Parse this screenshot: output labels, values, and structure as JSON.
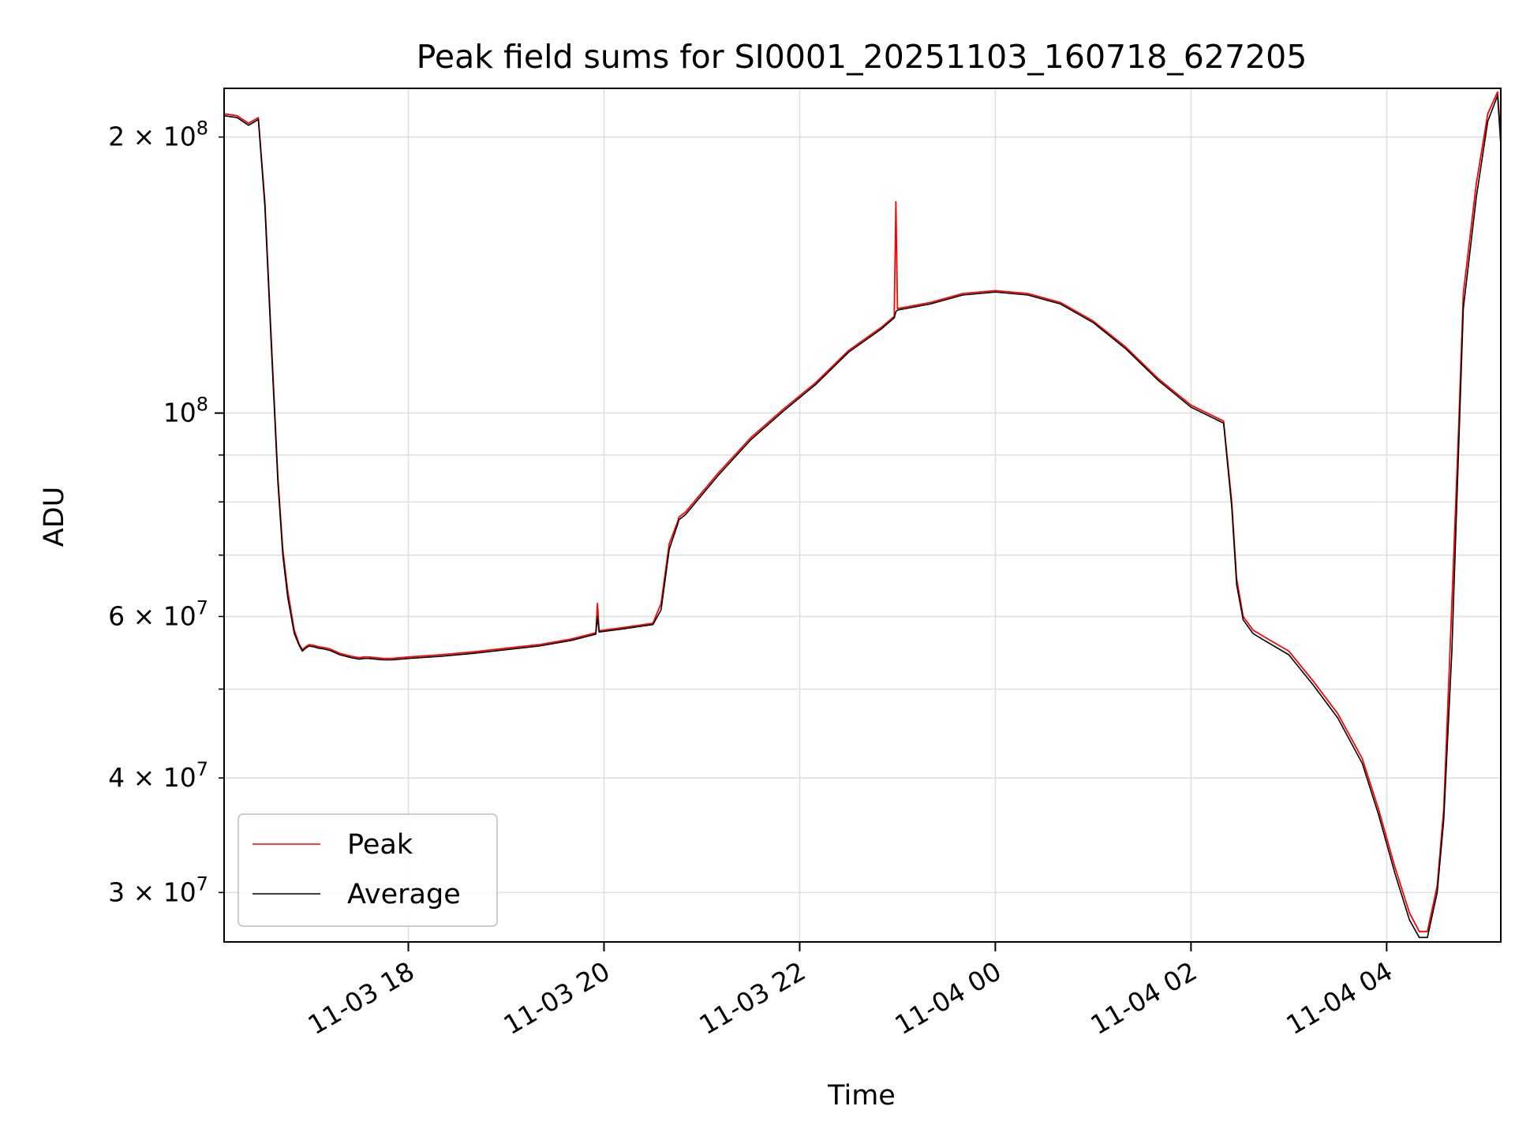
{
  "chart_data": {
    "type": "line",
    "title": "Peak field sums for SI0001_20251103_160718_627205",
    "xlabel": "Time",
    "ylabel": "ADU",
    "y_scale": "log",
    "ylim": [
      26500000,
      226000000
    ],
    "xlim": [
      "2025-11-03 16:07",
      "2025-11-04 05:10"
    ],
    "grid": true,
    "legend_position": "lower-left",
    "x_ticks": [
      {
        "value": "2025-11-03 18:00",
        "label": "11-03 18"
      },
      {
        "value": "2025-11-03 20:00",
        "label": "11-03 20"
      },
      {
        "value": "2025-11-03 22:00",
        "label": "11-03 22"
      },
      {
        "value": "2025-11-04 00:00",
        "label": "11-04 00"
      },
      {
        "value": "2025-11-04 02:00",
        "label": "11-04 02"
      },
      {
        "value": "2025-11-04 04:00",
        "label": "11-04 04"
      }
    ],
    "y_major_ticks": [
      {
        "value": 100000000,
        "base": "10",
        "exp": "8"
      }
    ],
    "y_minor_labeled_ticks": [
      {
        "value": 200000000,
        "mant": "2",
        "exp": "8"
      },
      {
        "value": 60000000,
        "mant": "6",
        "exp": "7"
      },
      {
        "value": 40000000,
        "mant": "4",
        "exp": "7"
      },
      {
        "value": 30000000,
        "mant": "3",
        "exp": "7"
      }
    ],
    "y_minor_unlabeled_ticks": [
      90000000,
      80000000,
      70000000,
      50000000
    ],
    "series": [
      {
        "name": "Peak",
        "color": "#ff0000",
        "x": [
          "2025-11-03 16:07",
          "2025-11-03 16:15",
          "2025-11-03 16:22",
          "2025-11-03 16:28",
          "2025-11-03 16:32",
          "2025-11-03 16:36",
          "2025-11-03 16:40",
          "2025-11-03 16:43",
          "2025-11-03 16:46",
          "2025-11-03 16:50",
          "2025-11-03 16:53",
          "2025-11-03 16:55",
          "2025-11-03 16:57",
          "2025-11-03 16:59",
          "2025-11-03 17:02",
          "2025-11-03 17:05",
          "2025-11-03 17:08",
          "2025-11-03 17:12",
          "2025-11-03 17:18",
          "2025-11-03 17:25",
          "2025-11-03 17:30",
          "2025-11-03 17:33",
          "2025-11-03 17:36",
          "2025-11-03 17:40",
          "2025-11-03 17:45",
          "2025-11-03 17:50",
          "2025-11-03 17:55",
          "2025-11-03 18:00",
          "2025-11-03 18:20",
          "2025-11-03 18:40",
          "2025-11-03 19:00",
          "2025-11-03 19:20",
          "2025-11-03 19:40",
          "2025-11-03 19:50",
          "2025-11-03 19:55",
          "2025-11-03 19:56",
          "2025-11-03 19:57",
          "2025-11-03 20:10",
          "2025-11-03 20:30",
          "2025-11-03 20:35",
          "2025-11-03 20:40",
          "2025-11-03 20:45",
          "2025-11-03 20:46",
          "2025-11-03 20:50",
          "2025-11-03 21:10",
          "2025-11-03 21:30",
          "2025-11-03 21:50",
          "2025-11-03 22:10",
          "2025-11-03 22:30",
          "2025-11-03 22:50",
          "2025-11-03 22:58",
          "2025-11-03 22:59",
          "2025-11-03 23:00",
          "2025-11-03 23:20",
          "2025-11-03 23:40",
          "2025-11-04 00:00",
          "2025-11-04 00:20",
          "2025-11-04 00:40",
          "2025-11-04 01:00",
          "2025-11-04 01:20",
          "2025-11-04 01:40",
          "2025-11-04 02:00",
          "2025-11-04 02:20",
          "2025-11-04 02:25",
          "2025-11-04 02:28",
          "2025-11-04 02:32",
          "2025-11-04 02:38",
          "2025-11-04 02:45",
          "2025-11-04 03:00",
          "2025-11-04 03:15",
          "2025-11-04 03:30",
          "2025-11-04 03:45",
          "2025-11-04 03:55",
          "2025-11-04 04:05",
          "2025-11-04 04:14",
          "2025-11-04 04:20",
          "2025-11-04 04:25",
          "2025-11-04 04:31",
          "2025-11-04 04:35",
          "2025-11-04 04:40",
          "2025-11-04 04:44",
          "2025-11-04 04:47",
          "2025-11-04 04:55",
          "2025-11-04 05:02",
          "2025-11-04 05:08",
          "2025-11-04 05:10"
        ],
        "y": [
          212000000,
          211000000,
          207000000,
          210000000,
          170000000,
          120000000,
          85000000,
          71000000,
          64000000,
          58000000,
          56000000,
          55200000,
          55600000,
          55900000,
          55800000,
          55600000,
          55500000,
          55300000,
          54700000,
          54300000,
          54100000,
          54200000,
          54200000,
          54100000,
          54000000,
          54000000,
          54100000,
          54200000,
          54500000,
          54900000,
          55400000,
          55900000,
          56700000,
          57300000,
          57600000,
          62000000,
          57900000,
          58300000,
          59000000,
          62000000,
          72000000,
          76000000,
          77000000,
          78000000,
          86000000,
          94000000,
          101000000,
          108000000,
          117000000,
          124000000,
          127500000,
          170000000,
          130000000,
          132000000,
          135000000,
          136000000,
          135000000,
          132000000,
          126000000,
          118000000,
          109000000,
          102000000,
          98000000,
          80000000,
          66000000,
          60000000,
          58000000,
          57000000,
          55000000,
          51000000,
          47000000,
          42000000,
          37000000,
          32000000,
          28500000,
          27200000,
          27200000,
          30500000,
          37000000,
          62000000,
          95000000,
          135000000,
          178000000,
          212000000,
          224000000,
          200000000
        ]
      },
      {
        "name": "Average",
        "color": "#000000",
        "x": [
          "2025-11-03 16:07",
          "2025-11-03 16:15",
          "2025-11-03 16:22",
          "2025-11-03 16:28",
          "2025-11-03 16:32",
          "2025-11-03 16:36",
          "2025-11-03 16:40",
          "2025-11-03 16:43",
          "2025-11-03 16:46",
          "2025-11-03 16:50",
          "2025-11-03 16:53",
          "2025-11-03 16:55",
          "2025-11-03 16:57",
          "2025-11-03 16:59",
          "2025-11-03 17:02",
          "2025-11-03 17:05",
          "2025-11-03 17:08",
          "2025-11-03 17:12",
          "2025-11-03 17:18",
          "2025-11-03 17:25",
          "2025-11-03 17:30",
          "2025-11-03 17:33",
          "2025-11-03 17:36",
          "2025-11-03 17:40",
          "2025-11-03 17:45",
          "2025-11-03 17:50",
          "2025-11-03 17:55",
          "2025-11-03 18:00",
          "2025-11-03 18:20",
          "2025-11-03 18:40",
          "2025-11-03 19:00",
          "2025-11-03 19:20",
          "2025-11-03 19:40",
          "2025-11-03 19:50",
          "2025-11-03 19:55",
          "2025-11-03 19:56",
          "2025-11-03 19:57",
          "2025-11-03 20:10",
          "2025-11-03 20:30",
          "2025-11-03 20:35",
          "2025-11-03 20:40",
          "2025-11-03 20:45",
          "2025-11-03 20:46",
          "2025-11-03 20:50",
          "2025-11-03 21:10",
          "2025-11-03 21:30",
          "2025-11-03 21:50",
          "2025-11-03 22:10",
          "2025-11-03 22:30",
          "2025-11-03 22:50",
          "2025-11-03 22:58",
          "2025-11-03 22:59",
          "2025-11-03 23:00",
          "2025-11-03 23:20",
          "2025-11-03 23:40",
          "2025-11-04 00:00",
          "2025-11-04 00:20",
          "2025-11-04 00:40",
          "2025-11-04 01:00",
          "2025-11-04 01:20",
          "2025-11-04 01:40",
          "2025-11-04 02:00",
          "2025-11-04 02:20",
          "2025-11-04 02:25",
          "2025-11-04 02:28",
          "2025-11-04 02:32",
          "2025-11-04 02:38",
          "2025-11-04 02:45",
          "2025-11-04 03:00",
          "2025-11-04 03:15",
          "2025-11-04 03:30",
          "2025-11-04 03:45",
          "2025-11-04 03:55",
          "2025-11-04 04:05",
          "2025-11-04 04:14",
          "2025-11-04 04:20",
          "2025-11-04 04:25",
          "2025-11-04 04:31",
          "2025-11-04 04:35",
          "2025-11-04 04:40",
          "2025-11-04 04:44",
          "2025-11-04 04:47",
          "2025-11-04 04:55",
          "2025-11-04 05:02",
          "2025-11-04 05:08",
          "2025-11-04 05:10"
        ],
        "y": [
          211000000,
          210000000,
          206000000,
          209000000,
          168000000,
          118000000,
          84000000,
          70000000,
          63000000,
          57500000,
          55800000,
          55000000,
          55400000,
          55700000,
          55600000,
          55400000,
          55300000,
          55100000,
          54500000,
          54100000,
          53900000,
          54000000,
          54000000,
          53900000,
          53800000,
          53800000,
          53900000,
          54000000,
          54300000,
          54700000,
          55200000,
          55700000,
          56500000,
          57100000,
          57400000,
          60000000,
          57700000,
          58100000,
          58800000,
          61000000,
          71000000,
          75500000,
          76500000,
          77500000,
          85500000,
          93500000,
          100500000,
          107500000,
          116500000,
          123500000,
          127000000,
          129000000,
          129500000,
          131500000,
          134500000,
          135500000,
          134500000,
          131500000,
          125500000,
          117500000,
          108500000,
          101500000,
          97500000,
          79000000,
          65000000,
          59500000,
          57500000,
          56500000,
          54500000,
          50500000,
          46500000,
          41500000,
          36500000,
          31500000,
          28000000,
          26800000,
          26800000,
          30000000,
          36000000,
          55000000,
          90000000,
          130000000,
          172000000,
          208000000,
          222000000,
          196000000
        ]
      }
    ]
  }
}
